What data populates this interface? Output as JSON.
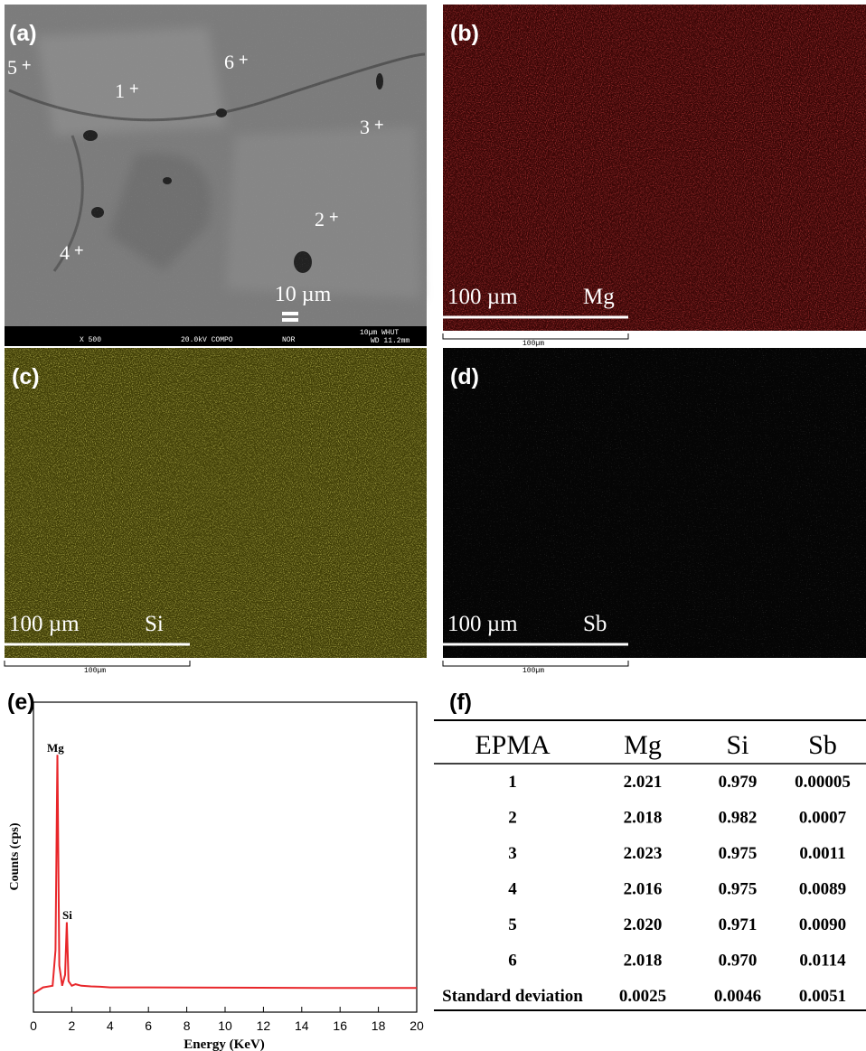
{
  "panels": [
    {
      "label": "(a)",
      "points": [
        "1",
        "2",
        "3",
        "4",
        "5",
        "6"
      ],
      "scale": "10 µm",
      "info_bar": [
        "X 500",
        "20.0kV COMPO",
        "NOR",
        "10µm WHUT",
        "WD 11.2mm"
      ]
    },
    {
      "label": "(b)",
      "scale": "100 µm",
      "element": "Mg",
      "ruler": "100µm"
    },
    {
      "label": "(c)",
      "scale": "100 µm",
      "element": "Si",
      "ruler": "100µm"
    },
    {
      "label": "(d)",
      "scale": "100 µm",
      "element": "Sb",
      "ruler": "100µm"
    }
  ],
  "chart_data": {
    "label": "(e)",
    "type": "line",
    "x_label": "Energy (KeV)",
    "y_label": "Counts (cps)",
    "annotations": [
      "Mg",
      "Si"
    ],
    "xlim": [
      0,
      20
    ],
    "xticks": [
      0,
      2,
      4,
      6,
      8,
      10,
      12,
      14,
      16,
      18,
      20
    ],
    "ylim": [
      0,
      100
    ],
    "series": [
      {
        "color": "#e8262a",
        "x": [
          0,
          0.5,
          1.0,
          1.15,
          1.25,
          1.35,
          1.5,
          1.65,
          1.74,
          1.83,
          2.0,
          2.2,
          2.5,
          3,
          3.5,
          4,
          6,
          10,
          15,
          20
        ],
        "values": [
          6,
          8,
          8.5,
          20,
          83,
          15,
          8.5,
          12,
          29,
          10,
          8.5,
          9,
          8.5,
          8.3,
          8.2,
          8,
          8,
          7.9,
          7.8,
          7.8
        ]
      }
    ]
  },
  "table": {
    "label": "(f)",
    "header": [
      "EPMA",
      "Mg",
      "Si",
      "Sb"
    ],
    "rows": [
      [
        "1",
        "2.021",
        "0.979",
        "0.00005"
      ],
      [
        "2",
        "2.018",
        "0.982",
        "0.0007"
      ],
      [
        "3",
        "2.023",
        "0.975",
        "0.0011"
      ],
      [
        "4",
        "2.016",
        "0.975",
        "0.0089"
      ],
      [
        "5",
        "2.020",
        "0.971",
        "0.0090"
      ],
      [
        "6",
        "2.018",
        "0.970",
        "0.0114"
      ],
      [
        "Standard deviation",
        "0.0025",
        "0.0046",
        "0.0051"
      ]
    ]
  }
}
